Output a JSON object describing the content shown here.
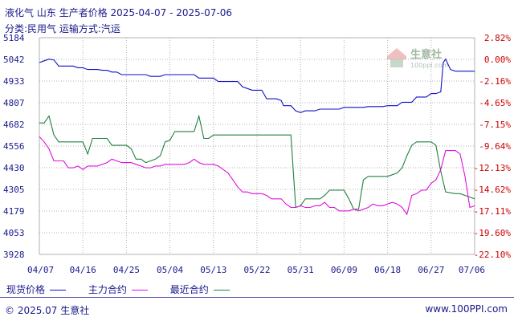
{
  "header": {
    "product": "液化气",
    "region": "山东",
    "category": "生产者价格",
    "date_range": "2025-04-07 - 2025-07-06",
    "classification": "分类:民用气",
    "transport": "运输方式:汽运"
  },
  "legend": {
    "spot": "现货价格",
    "main": "主力合约",
    "recent": "最近合约"
  },
  "footer": {
    "copyright": "© 2025.07 生意社",
    "site": "www.100PPI.com"
  },
  "watermark": {
    "text": "生意社",
    "url": "100ppi.com"
  },
  "colors": {
    "spot": "#1010c8",
    "main": "#e010e0",
    "recent": "#208040",
    "left_axis": "#1a1a8c",
    "right_axis": "#cc0000",
    "grid": "#b0b0b0"
  },
  "chart_data": {
    "type": "line",
    "title": "",
    "x_ticks": [
      "04/07",
      "04/16",
      "04/25",
      "05/04",
      "05/13",
      "05/22",
      "05/31",
      "06/09",
      "06/18",
      "06/27",
      "07/06"
    ],
    "y_left_ticks": [
      "5184",
      "5042",
      "4933",
      "4807",
      "4682",
      "4556",
      "4430",
      "4305",
      "4179",
      "4053",
      "3928"
    ],
    "y_right_ticks": [
      "2.82%",
      "0.00%",
      "-2.16%",
      "-4.65%",
      "-7.15%",
      "-9.64%",
      "-12.13%",
      "-14.62%",
      "-17.11%",
      "-19.60%",
      "-22.10%"
    ],
    "ylim": [
      3928,
      5184
    ],
    "x_unit": "day index from 04/07 (0) to 07/06 (90)",
    "series": [
      {
        "name": "现货价格",
        "points": [
          [
            0,
            5040
          ],
          [
            1,
            5050
          ],
          [
            2,
            5060
          ],
          [
            3,
            5055
          ],
          [
            4,
            5020
          ],
          [
            5,
            5020
          ],
          [
            7,
            5020
          ],
          [
            8,
            5010
          ],
          [
            9,
            5010
          ],
          [
            10,
            5000
          ],
          [
            12,
            5000
          ],
          [
            13,
            4995
          ],
          [
            14,
            4995
          ],
          [
            15,
            4985
          ],
          [
            16,
            4985
          ],
          [
            17,
            4970
          ],
          [
            22,
            4970
          ],
          [
            23,
            4960
          ],
          [
            25,
            4960
          ],
          [
            26,
            4970
          ],
          [
            32,
            4970
          ],
          [
            33,
            4950
          ],
          [
            36,
            4950
          ],
          [
            37,
            4930
          ],
          [
            41,
            4930
          ],
          [
            42,
            4900
          ],
          [
            44,
            4880
          ],
          [
            46,
            4880
          ],
          [
            47,
            4830
          ],
          [
            49,
            4830
          ],
          [
            50,
            4820
          ],
          [
            50.5,
            4790
          ],
          [
            52,
            4790
          ],
          [
            53,
            4760
          ],
          [
            54,
            4750
          ],
          [
            55,
            4760
          ],
          [
            57,
            4760
          ],
          [
            58,
            4770
          ],
          [
            62,
            4770
          ],
          [
            63,
            4780
          ],
          [
            67,
            4780
          ],
          [
            68,
            4785
          ],
          [
            71,
            4785
          ],
          [
            72,
            4790
          ],
          [
            74,
            4790
          ],
          [
            75,
            4810
          ],
          [
            77,
            4810
          ],
          [
            78,
            4840
          ],
          [
            80,
            4840
          ],
          [
            81,
            4860
          ],
          [
            82,
            4860
          ],
          [
            83,
            4870
          ],
          [
            83.5,
            5040
          ],
          [
            84,
            5060
          ],
          [
            85,
            5000
          ],
          [
            86,
            4990
          ],
          [
            90,
            4990
          ]
        ]
      },
      {
        "name": "主力合约",
        "points": [
          [
            0,
            4610
          ],
          [
            1,
            4580
          ],
          [
            2,
            4540
          ],
          [
            3,
            4470
          ],
          [
            4,
            4470
          ],
          [
            5,
            4470
          ],
          [
            6,
            4430
          ],
          [
            7,
            4430
          ],
          [
            8,
            4440
          ],
          [
            9,
            4420
          ],
          [
            10,
            4440
          ],
          [
            11,
            4440
          ],
          [
            12,
            4440
          ],
          [
            13,
            4450
          ],
          [
            14,
            4460
          ],
          [
            15,
            4480
          ],
          [
            16,
            4470
          ],
          [
            17,
            4460
          ],
          [
            18,
            4460
          ],
          [
            19,
            4460
          ],
          [
            20,
            4450
          ],
          [
            21,
            4440
          ],
          [
            22,
            4430
          ],
          [
            23,
            4430
          ],
          [
            24,
            4440
          ],
          [
            25,
            4440
          ],
          [
            26,
            4450
          ],
          [
            30,
            4450
          ],
          [
            31,
            4460
          ],
          [
            32,
            4480
          ],
          [
            33,
            4460
          ],
          [
            34,
            4450
          ],
          [
            36,
            4450
          ],
          [
            37,
            4440
          ],
          [
            38,
            4420
          ],
          [
            39,
            4400
          ],
          [
            40,
            4360
          ],
          [
            41,
            4320
          ],
          [
            42,
            4290
          ],
          [
            43,
            4290
          ],
          [
            44,
            4280
          ],
          [
            46,
            4280
          ],
          [
            47,
            4270
          ],
          [
            48,
            4250
          ],
          [
            50,
            4250
          ],
          [
            51,
            4220
          ],
          [
            52,
            4200
          ],
          [
            53,
            4200
          ],
          [
            54,
            4210
          ],
          [
            55,
            4200
          ],
          [
            56,
            4200
          ],
          [
            57,
            4210
          ],
          [
            58,
            4210
          ],
          [
            59,
            4230
          ],
          [
            60,
            4200
          ],
          [
            61,
            4200
          ],
          [
            62,
            4180
          ],
          [
            64,
            4180
          ],
          [
            65,
            4190
          ],
          [
            66,
            4180
          ],
          [
            67,
            4190
          ],
          [
            68,
            4200
          ],
          [
            69,
            4220
          ],
          [
            70,
            4210
          ],
          [
            71,
            4210
          ],
          [
            72,
            4220
          ],
          [
            73,
            4230
          ],
          [
            74,
            4220
          ],
          [
            75,
            4200
          ],
          [
            76,
            4160
          ],
          [
            77,
            4270
          ],
          [
            78,
            4280
          ],
          [
            79,
            4300
          ],
          [
            80,
            4300
          ],
          [
            81,
            4340
          ],
          [
            82,
            4360
          ],
          [
            83,
            4420
          ],
          [
            84,
            4530
          ],
          [
            86,
            4530
          ],
          [
            87,
            4510
          ],
          [
            88,
            4380
          ],
          [
            89,
            4200
          ],
          [
            90,
            4210
          ]
        ]
      },
      {
        "name": "最近合约",
        "points": [
          [
            0,
            4690
          ],
          [
            1,
            4690
          ],
          [
            2,
            4730
          ],
          [
            3,
            4620
          ],
          [
            4,
            4580
          ],
          [
            5,
            4580
          ],
          [
            9,
            4580
          ],
          [
            10,
            4510
          ],
          [
            11,
            4600
          ],
          [
            12,
            4600
          ],
          [
            13,
            4600
          ],
          [
            14,
            4600
          ],
          [
            15,
            4560
          ],
          [
            16,
            4560
          ],
          [
            17,
            4560
          ],
          [
            18,
            4560
          ],
          [
            19,
            4540
          ],
          [
            20,
            4480
          ],
          [
            21,
            4480
          ],
          [
            22,
            4460
          ],
          [
            23,
            4470
          ],
          [
            24,
            4480
          ],
          [
            25,
            4500
          ],
          [
            26,
            4580
          ],
          [
            27,
            4590
          ],
          [
            28,
            4640
          ],
          [
            29,
            4640
          ],
          [
            30,
            4640
          ],
          [
            31,
            4640
          ],
          [
            32,
            4640
          ],
          [
            33,
            4730
          ],
          [
            34,
            4600
          ],
          [
            35,
            4600
          ],
          [
            36,
            4620
          ],
          [
            52,
            4620
          ],
          [
            53,
            4200
          ],
          [
            54,
            4210
          ],
          [
            55,
            4250
          ],
          [
            56,
            4250
          ],
          [
            57,
            4250
          ],
          [
            58,
            4250
          ],
          [
            59,
            4270
          ],
          [
            60,
            4300
          ],
          [
            61,
            4300
          ],
          [
            62,
            4300
          ],
          [
            63,
            4300
          ],
          [
            64,
            4250
          ],
          [
            65,
            4190
          ],
          [
            66,
            4190
          ],
          [
            67,
            4360
          ],
          [
            68,
            4380
          ],
          [
            69,
            4380
          ],
          [
            70,
            4380
          ],
          [
            71,
            4380
          ],
          [
            72,
            4380
          ],
          [
            73,
            4390
          ],
          [
            74,
            4400
          ],
          [
            75,
            4430
          ],
          [
            76,
            4500
          ],
          [
            77,
            4560
          ],
          [
            78,
            4580
          ],
          [
            79,
            4580
          ],
          [
            80,
            4580
          ],
          [
            81,
            4580
          ],
          [
            82,
            4560
          ],
          [
            83,
            4410
          ],
          [
            84,
            4290
          ],
          [
            86,
            4280
          ],
          [
            87,
            4280
          ],
          [
            88,
            4270
          ],
          [
            89,
            4260
          ],
          [
            90,
            4250
          ]
        ]
      }
    ]
  }
}
